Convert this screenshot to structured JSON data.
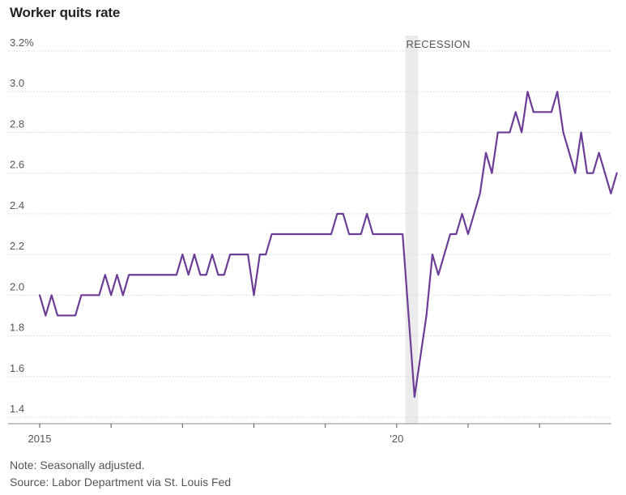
{
  "title": "Worker quits rate",
  "note": "Note: Seasonally adjusted.",
  "source": "Source: Labor Department via St. Louis Fed",
  "colors": {
    "line": "#6b3d96",
    "recession": "#ebebeb",
    "grid": "#d9d9d9",
    "axis": "#555555"
  },
  "chart_data": {
    "type": "line",
    "title": "Worker quits rate",
    "xlabel": "",
    "ylabel": "",
    "ylim": [
      1.4,
      3.2
    ],
    "yticks": [
      1.4,
      1.6,
      1.8,
      2.0,
      2.2,
      2.4,
      2.6,
      2.8,
      3.0,
      3.2
    ],
    "ytick_labels": [
      "1.4",
      "1.6",
      "1.8",
      "2.0",
      "2.2",
      "2.4",
      "2.6",
      "2.8",
      "3.0",
      "3.2%"
    ],
    "xlim": [
      0,
      95
    ],
    "xticks_months": [
      0,
      12,
      24,
      36,
      48,
      60,
      72,
      84
    ],
    "xtick_labels": [
      {
        "month": 0,
        "label": "2015"
      },
      {
        "month": 60,
        "label": "'20"
      }
    ],
    "recession": {
      "label": "RECESSION",
      "start_month": 62,
      "end_month": 64
    },
    "series": [
      {
        "name": "Quits rate",
        "start": "2015-01",
        "values": [
          2.0,
          1.9,
          2.0,
          1.9,
          1.9,
          1.9,
          1.9,
          2.0,
          2.0,
          2.0,
          2.0,
          2.1,
          2.0,
          2.1,
          2.0,
          2.1,
          2.1,
          2.1,
          2.1,
          2.1,
          2.1,
          2.1,
          2.1,
          2.1,
          2.2,
          2.1,
          2.2,
          2.1,
          2.1,
          2.2,
          2.1,
          2.1,
          2.2,
          2.2,
          2.2,
          2.2,
          2.0,
          2.2,
          2.2,
          2.3,
          2.3,
          2.3,
          2.3,
          2.3,
          2.3,
          2.3,
          2.3,
          2.3,
          2.3,
          2.3,
          2.4,
          2.4,
          2.3,
          2.3,
          2.3,
          2.4,
          2.3,
          2.3,
          2.3,
          2.3,
          2.3,
          2.3,
          1.9,
          1.5,
          1.7,
          1.9,
          2.2,
          2.1,
          2.2,
          2.3,
          2.3,
          2.4,
          2.3,
          2.4,
          2.5,
          2.7,
          2.6,
          2.8,
          2.8,
          2.8,
          2.9,
          2.8,
          3.0,
          2.9,
          2.9,
          2.9,
          2.9,
          3.0,
          2.8,
          2.7,
          2.6,
          2.8,
          2.6,
          2.6,
          2.7,
          2.6,
          2.5,
          2.6
        ]
      }
    ]
  }
}
